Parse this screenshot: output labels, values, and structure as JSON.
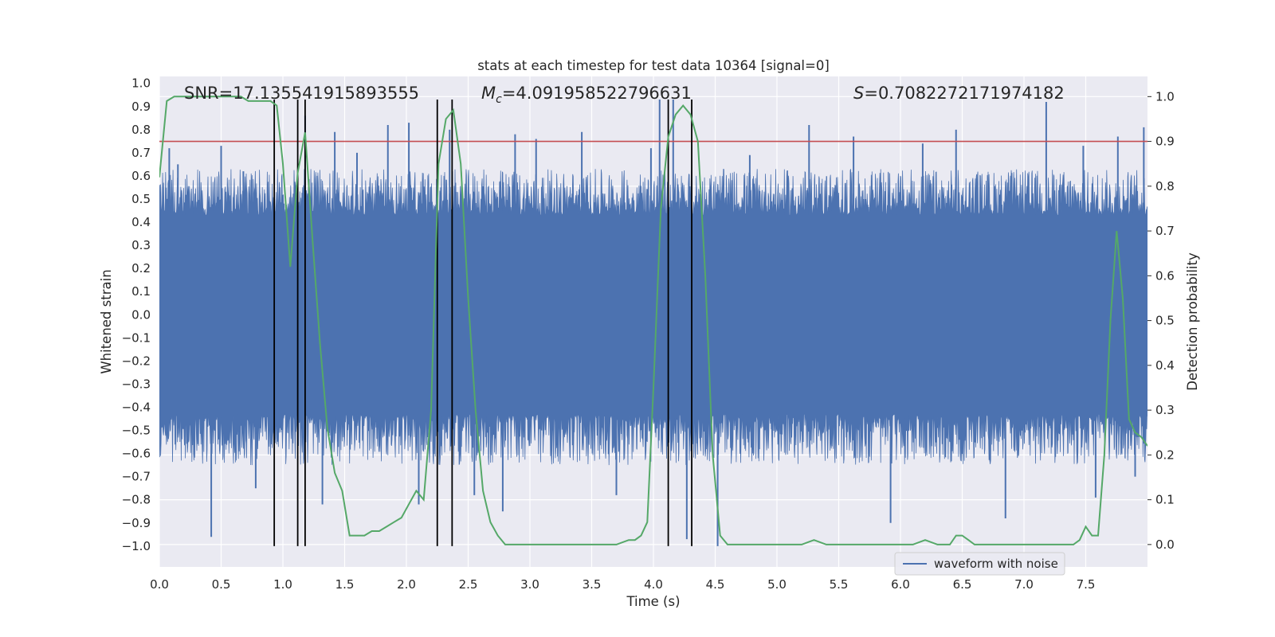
{
  "chart_data": {
    "type": "line",
    "title": "stats at each timestep for test data 10364 [signal=0]",
    "xlabel": "Time (s)",
    "ylabel_left": "Whitened strain",
    "ylabel_right": "Detection probability",
    "xlim": [
      0,
      8
    ],
    "ylim_left": [
      -1.09,
      1.03
    ],
    "ylim_right": [
      -0.05,
      1.045
    ],
    "x_ticks": [
      "0.0",
      "0.5",
      "1.0",
      "1.5",
      "2.0",
      "2.5",
      "3.0",
      "3.5",
      "4.0",
      "4.5",
      "5.0",
      "5.5",
      "6.0",
      "6.5",
      "7.0",
      "7.5"
    ],
    "x_tick_values": [
      0,
      0.5,
      1,
      1.5,
      2,
      2.5,
      3,
      3.5,
      4,
      4.5,
      5,
      5.5,
      6,
      6.5,
      7,
      7.5
    ],
    "y_left_ticks": [
      "1.0",
      "0.9",
      "0.8",
      "0.7",
      "0.6",
      "0.5",
      "0.4",
      "0.3",
      "0.2",
      "0.1",
      "0.0",
      "−0.1",
      "−0.2",
      "−0.3",
      "−0.4",
      "−0.5",
      "−0.6",
      "−0.7",
      "−0.8",
      "−0.9",
      "−1.0"
    ],
    "y_left_tick_values": [
      1.0,
      0.9,
      0.8,
      0.7,
      0.6,
      0.5,
      0.4,
      0.3,
      0.2,
      0.1,
      0.0,
      -0.1,
      -0.2,
      -0.3,
      -0.4,
      -0.5,
      -0.6,
      -0.7,
      -0.8,
      -0.9,
      -1.0
    ],
    "y_right_ticks": [
      "1.0",
      "0.9",
      "0.8",
      "0.7",
      "0.6",
      "0.5",
      "0.4",
      "0.3",
      "0.2",
      "0.1",
      "0.0"
    ],
    "y_right_tick_values": [
      1.0,
      0.9,
      0.8,
      0.7,
      0.6,
      0.5,
      0.4,
      0.3,
      0.2,
      0.1,
      0.0
    ],
    "annotations": {
      "snr": "SNR=17.135541915893555",
      "mc_symbol": "M",
      "mc_sub": "c",
      "mc_value": "=4.091958522796631",
      "s_symbol": "S",
      "s_value": "=0.7082272171974182"
    },
    "threshold_line": {
      "value": 0.9,
      "axis": "right",
      "color": "#c44e52"
    },
    "vertical_lines": [
      0.93,
      1.12,
      1.18,
      2.25,
      2.37,
      4.12,
      4.31
    ],
    "vertical_lines_range": [
      -1.0,
      0.93
    ],
    "waveform": {
      "name": "waveform with noise",
      "color": "#4c72b0",
      "core_amplitude": 0.43,
      "typical_peak": 0.55,
      "spikes": [
        {
          "t": 0.08,
          "v": 0.72
        },
        {
          "t": 0.15,
          "v": 0.65
        },
        {
          "t": 0.42,
          "v": -0.96
        },
        {
          "t": 0.5,
          "v": 0.73
        },
        {
          "t": 0.68,
          "v": 0.62
        },
        {
          "t": 0.78,
          "v": -0.75
        },
        {
          "t": 1.18,
          "v": 0.86
        },
        {
          "t": 1.32,
          "v": -0.82
        },
        {
          "t": 1.42,
          "v": 0.79
        },
        {
          "t": 1.6,
          "v": 0.7
        },
        {
          "t": 1.85,
          "v": 0.82
        },
        {
          "t": 2.02,
          "v": 0.83
        },
        {
          "t": 2.1,
          "v": -0.82
        },
        {
          "t": 2.35,
          "v": 0.8
        },
        {
          "t": 2.55,
          "v": -0.78
        },
        {
          "t": 2.78,
          "v": -0.85
        },
        {
          "t": 2.88,
          "v": 0.78
        },
        {
          "t": 3.05,
          "v": 0.76
        },
        {
          "t": 3.42,
          "v": 0.79
        },
        {
          "t": 3.7,
          "v": -0.78
        },
        {
          "t": 3.98,
          "v": 0.72
        },
        {
          "t": 4.05,
          "v": 0.93
        },
        {
          "t": 4.16,
          "v": 0.93
        },
        {
          "t": 4.27,
          "v": -0.97
        },
        {
          "t": 4.52,
          "v": -1.0
        },
        {
          "t": 4.78,
          "v": 0.69
        },
        {
          "t": 5.26,
          "v": 0.82
        },
        {
          "t": 5.62,
          "v": 0.77
        },
        {
          "t": 5.92,
          "v": -0.9
        },
        {
          "t": 6.18,
          "v": 0.74
        },
        {
          "t": 6.45,
          "v": 0.8
        },
        {
          "t": 6.85,
          "v": -0.88
        },
        {
          "t": 7.18,
          "v": 0.92
        },
        {
          "t": 7.48,
          "v": 0.73
        },
        {
          "t": 7.58,
          "v": -0.79
        },
        {
          "t": 7.76,
          "v": 0.77
        },
        {
          "t": 7.97,
          "v": 0.81
        },
        {
          "t": 7.9,
          "v": -0.7
        }
      ]
    },
    "probability": {
      "name": "detection probability",
      "color": "#55a868",
      "x": [
        0,
        0.06,
        0.12,
        0.18,
        0.24,
        0.3,
        0.36,
        0.42,
        0.48,
        0.54,
        0.6,
        0.66,
        0.72,
        0.78,
        0.84,
        0.9,
        0.95,
        1.0,
        1.06,
        1.12,
        1.18,
        1.24,
        1.3,
        1.36,
        1.42,
        1.48,
        1.54,
        1.6,
        1.66,
        1.72,
        1.78,
        1.84,
        1.9,
        1.96,
        2.02,
        2.08,
        2.14,
        2.2,
        2.26,
        2.32,
        2.38,
        2.44,
        2.5,
        2.56,
        2.62,
        2.68,
        2.74,
        2.8,
        2.9,
        3.0,
        3.1,
        3.2,
        3.3,
        3.4,
        3.5,
        3.6,
        3.7,
        3.8,
        3.85,
        3.9,
        3.95,
        4.0,
        4.06,
        4.12,
        4.18,
        4.24,
        4.3,
        4.36,
        4.42,
        4.48,
        4.54,
        4.6,
        4.7,
        4.8,
        4.9,
        5.0,
        5.1,
        5.2,
        5.3,
        5.4,
        5.5,
        5.6,
        5.7,
        5.8,
        5.9,
        6.0,
        6.1,
        6.2,
        6.3,
        6.4,
        6.45,
        6.5,
        6.55,
        6.6,
        6.7,
        6.8,
        6.9,
        7.0,
        7.1,
        7.2,
        7.3,
        7.4,
        7.45,
        7.5,
        7.55,
        7.6,
        7.65,
        7.7,
        7.75,
        7.8,
        7.85,
        7.9,
        7.95,
        8.0
      ],
      "values": [
        0.82,
        0.99,
        1.0,
        1.0,
        1.0,
        1.0,
        1.0,
        1.0,
        1.0,
        1.0,
        1.0,
        1.0,
        0.99,
        0.99,
        0.99,
        0.99,
        0.98,
        0.85,
        0.62,
        0.83,
        0.92,
        0.68,
        0.45,
        0.26,
        0.16,
        0.12,
        0.02,
        0.02,
        0.02,
        0.03,
        0.03,
        0.04,
        0.05,
        0.06,
        0.09,
        0.12,
        0.1,
        0.3,
        0.85,
        0.95,
        0.97,
        0.85,
        0.55,
        0.3,
        0.12,
        0.05,
        0.02,
        0.0,
        0.0,
        0.0,
        0.0,
        0.0,
        0.0,
        0.0,
        0.0,
        0.0,
        0.0,
        0.01,
        0.01,
        0.02,
        0.05,
        0.35,
        0.75,
        0.91,
        0.96,
        0.98,
        0.96,
        0.9,
        0.6,
        0.2,
        0.02,
        0.0,
        0.0,
        0.0,
        0.0,
        0.0,
        0.0,
        0.0,
        0.01,
        0.0,
        0.0,
        0.0,
        0.0,
        0.0,
        0.0,
        0.0,
        0.0,
        0.01,
        0.0,
        0.0,
        0.02,
        0.02,
        0.01,
        0.0,
        0.0,
        0.0,
        0.0,
        0.0,
        0.0,
        0.0,
        0.0,
        0.0,
        0.01,
        0.04,
        0.02,
        0.02,
        0.2,
        0.5,
        0.7,
        0.55,
        0.28,
        0.25,
        0.24,
        0.22
      ]
    },
    "legend": {
      "label": "waveform with noise",
      "placement": "lower-right"
    },
    "grid": true
  }
}
